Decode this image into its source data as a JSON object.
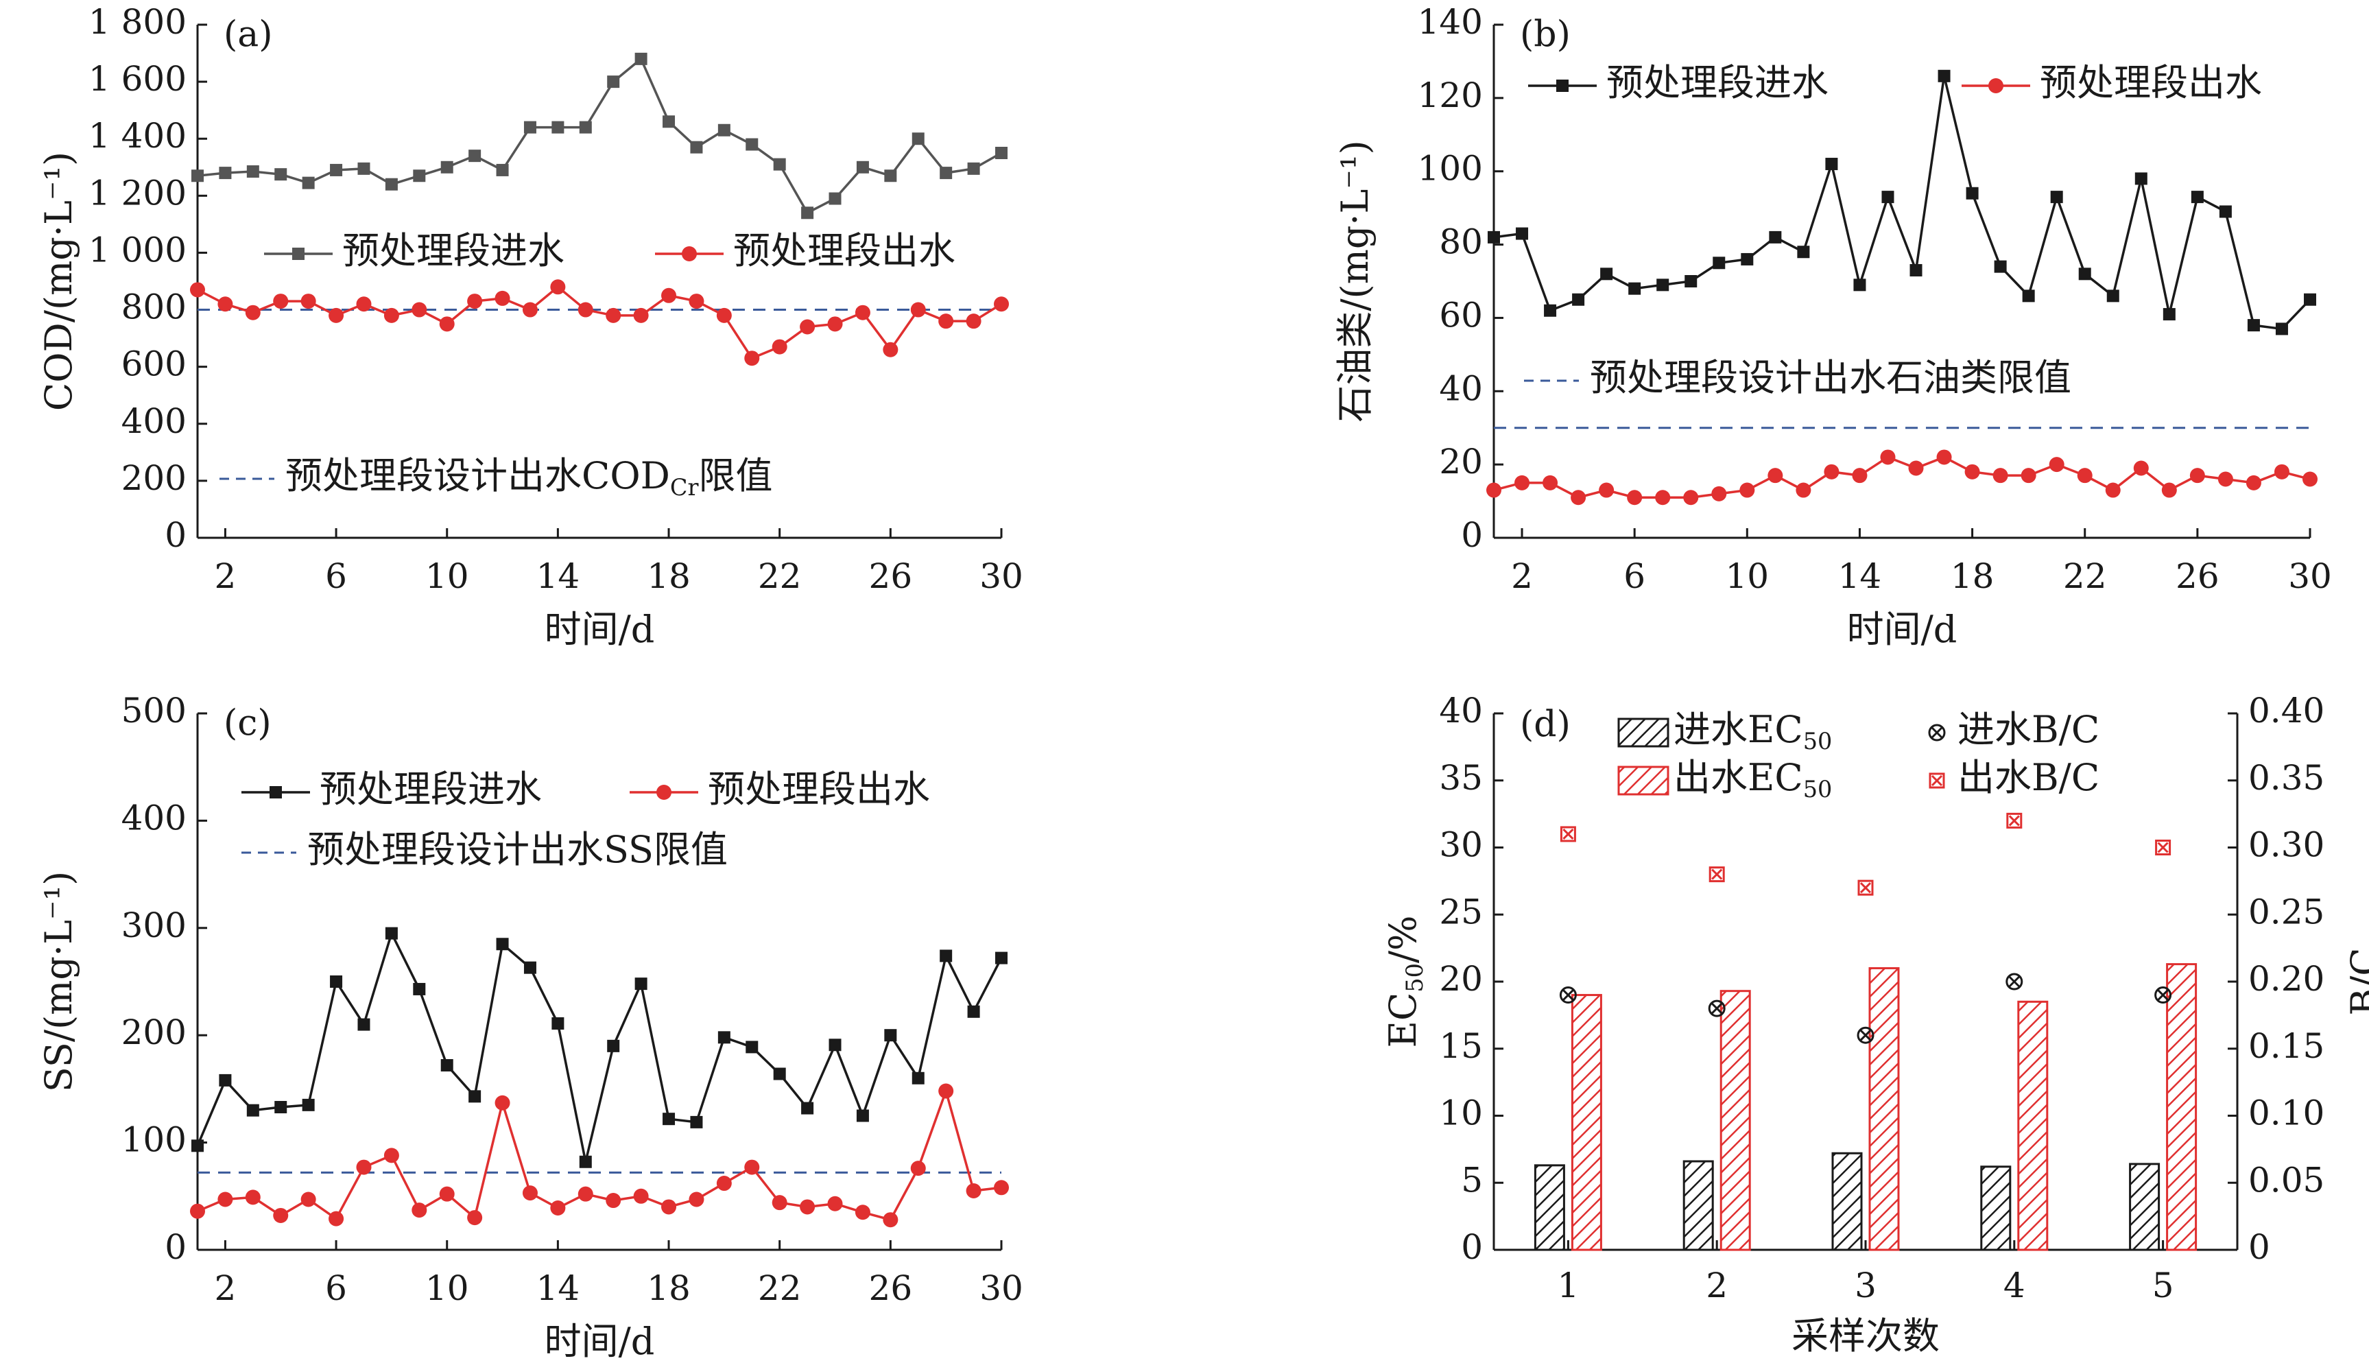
{
  "chart_data": [
    {
      "id": "a",
      "type": "line",
      "panel_label": "(a)",
      "xlabel": "时间/d",
      "ylabel": "COD/(mg·L⁻¹)",
      "ylim": [
        0,
        1800
      ],
      "xlim": [
        1,
        30
      ],
      "xticks": [
        2,
        6,
        10,
        14,
        18,
        22,
        26,
        30
      ],
      "yticks": [
        0,
        200,
        400,
        600,
        800,
        1000,
        1200,
        1400,
        1600,
        1800
      ],
      "ytick_labels": [
        "0",
        "200",
        "400",
        "600",
        "800",
        "1 000",
        "1 200",
        "1 400",
        "1 600",
        "1 800"
      ],
      "x": [
        1,
        2,
        3,
        4,
        5,
        6,
        7,
        8,
        9,
        10,
        11,
        12,
        13,
        14,
        15,
        16,
        17,
        18,
        19,
        20,
        21,
        22,
        23,
        24,
        25,
        26,
        27,
        28,
        29,
        30
      ],
      "series": [
        {
          "name": "预处理段进水",
          "color": "#555555",
          "marker": "square",
          "values": [
            1270,
            1280,
            1285,
            1275,
            1245,
            1290,
            1295,
            1240,
            1270,
            1300,
            1340,
            1290,
            1440,
            1440,
            1440,
            1600,
            1680,
            1460,
            1370,
            1430,
            1380,
            1310,
            1140,
            1190,
            1300,
            1270,
            1400,
            1280,
            1295,
            1350
          ]
        },
        {
          "name": "预处理段出水",
          "color": "#e03030",
          "marker": "circle",
          "values": [
            870,
            820,
            790,
            830,
            830,
            780,
            820,
            780,
            800,
            750,
            830,
            840,
            800,
            880,
            800,
            780,
            780,
            850,
            830,
            780,
            630,
            670,
            740,
            750,
            790,
            660,
            800,
            760,
            760,
            820
          ]
        }
      ],
      "limit": {
        "value": 800,
        "label_main": "预处理段设计出水COD",
        "label_sub": "Cr",
        "label_tail": "限值",
        "color": "#3a5a9a"
      },
      "legend": "middle-center"
    },
    {
      "id": "b",
      "type": "line",
      "panel_label": "(b)",
      "xlabel": "时间/d",
      "ylabel": "石油类/(mg·L⁻¹)",
      "ylim": [
        0,
        140
      ],
      "xlim": [
        1,
        30
      ],
      "xticks": [
        2,
        6,
        10,
        14,
        18,
        22,
        26,
        30
      ],
      "yticks": [
        0,
        20,
        40,
        60,
        80,
        100,
        120,
        140
      ],
      "ytick_labels": [
        "0",
        "20",
        "40",
        "60",
        "80",
        "100",
        "120",
        "140"
      ],
      "x": [
        1,
        2,
        3,
        4,
        5,
        6,
        7,
        8,
        9,
        10,
        11,
        12,
        13,
        14,
        15,
        16,
        17,
        18,
        19,
        20,
        21,
        22,
        23,
        24,
        25,
        26,
        27,
        28,
        29,
        30
      ],
      "series": [
        {
          "name": "预处理段进水",
          "color": "#1a1a1a",
          "marker": "square",
          "values": [
            82,
            83,
            62,
            65,
            72,
            68,
            69,
            70,
            75,
            76,
            82,
            78,
            102,
            69,
            93,
            73,
            126,
            94,
            74,
            66,
            93,
            72,
            66,
            98,
            61,
            93,
            89,
            58,
            57,
            65
          ]
        },
        {
          "name": "预处理段出水",
          "color": "#e03030",
          "marker": "circle",
          "values": [
            13,
            15,
            15,
            11,
            13,
            11,
            11,
            11,
            12,
            13,
            17,
            13,
            18,
            17,
            22,
            19,
            22,
            18,
            17,
            17,
            20,
            17,
            13,
            19,
            13,
            17,
            16,
            15,
            18,
            16
          ]
        }
      ],
      "limit": {
        "value": 30,
        "label_main": "预处理段设计出水石油类限值",
        "label_sub": "",
        "label_tail": "",
        "color": "#3a5a9a"
      },
      "legend": "top"
    },
    {
      "id": "c",
      "type": "line",
      "panel_label": "(c)",
      "xlabel": "时间/d",
      "ylabel": "SS/(mg·L⁻¹)",
      "ylim": [
        0,
        500
      ],
      "xlim": [
        1,
        30
      ],
      "xticks": [
        2,
        6,
        10,
        14,
        18,
        22,
        26,
        30
      ],
      "yticks": [
        0,
        100,
        200,
        300,
        400,
        500
      ],
      "ytick_labels": [
        "0",
        "100",
        "200",
        "300",
        "400",
        "500"
      ],
      "x": [
        1,
        2,
        3,
        4,
        5,
        6,
        7,
        8,
        9,
        10,
        11,
        12,
        13,
        14,
        15,
        16,
        17,
        18,
        19,
        20,
        21,
        22,
        23,
        24,
        25,
        26,
        27,
        28,
        29,
        30
      ],
      "series": [
        {
          "name": "预处理段进水",
          "color": "#1a1a1a",
          "marker": "square",
          "values": [
            97,
            158,
            130,
            133,
            135,
            250,
            210,
            295,
            243,
            172,
            143,
            285,
            263,
            211,
            82,
            190,
            248,
            122,
            119,
            198,
            189,
            164,
            132,
            191,
            125,
            200,
            160,
            274,
            222,
            272
          ]
        },
        {
          "name": "预处理段出水",
          "color": "#e03030",
          "marker": "circle",
          "values": [
            36,
            47,
            49,
            32,
            47,
            29,
            77,
            88,
            37,
            52,
            30,
            137,
            53,
            39,
            52,
            46,
            50,
            40,
            47,
            62,
            77,
            44,
            40,
            43,
            35,
            28,
            76,
            148,
            55,
            58
          ]
        }
      ],
      "limit": {
        "value": 72,
        "label_main": "预处理段设计出水SS限值",
        "label_sub": "",
        "label_tail": "",
        "color": "#3a5a9a"
      },
      "legend": "top-left"
    },
    {
      "id": "d",
      "type": "bar",
      "panel_label": "(d)",
      "xlabel": "采样次数",
      "ylabel_main": "EC",
      "ylabel_sub": "50",
      "ylabel_tail": "/%",
      "ylabel_right": "B/C",
      "categories": [
        "1",
        "2",
        "3",
        "4",
        "5"
      ],
      "ylim": [
        0,
        40
      ],
      "yticks": [
        0,
        5,
        10,
        15,
        20,
        25,
        30,
        35,
        40
      ],
      "ytick_labels": [
        "0",
        "5",
        "10",
        "15",
        "20",
        "25",
        "30",
        "35",
        "40"
      ],
      "ylim_right": [
        0,
        0.4
      ],
      "yticks_right": [
        0,
        0.05,
        0.1,
        0.15,
        0.2,
        0.25,
        0.3,
        0.35,
        0.4
      ],
      "ytick_labels_right": [
        "0",
        "0.05",
        "0.10",
        "0.15",
        "0.20",
        "0.25",
        "0.30",
        "0.35",
        "0.40"
      ],
      "series": [
        {
          "name_main": "进水EC",
          "name_sub": "50",
          "axis": "left",
          "style": "hatch-black",
          "values": [
            6.3,
            6.6,
            7.2,
            6.2,
            6.4
          ]
        },
        {
          "name_main": "出水EC",
          "name_sub": "50",
          "axis": "left",
          "style": "hatch-red",
          "values": [
            19.0,
            19.3,
            21.0,
            18.5,
            21.3
          ]
        },
        {
          "name_main": "进水B/C",
          "name_sub": "",
          "axis": "right",
          "style": "marker-black",
          "values": [
            0.19,
            0.18,
            0.16,
            0.2,
            0.19
          ]
        },
        {
          "name_main": "出水B/C",
          "name_sub": "",
          "axis": "right",
          "style": "marker-red",
          "values": [
            0.31,
            0.28,
            0.27,
            0.32,
            0.3
          ]
        }
      ],
      "legend": "top"
    }
  ]
}
